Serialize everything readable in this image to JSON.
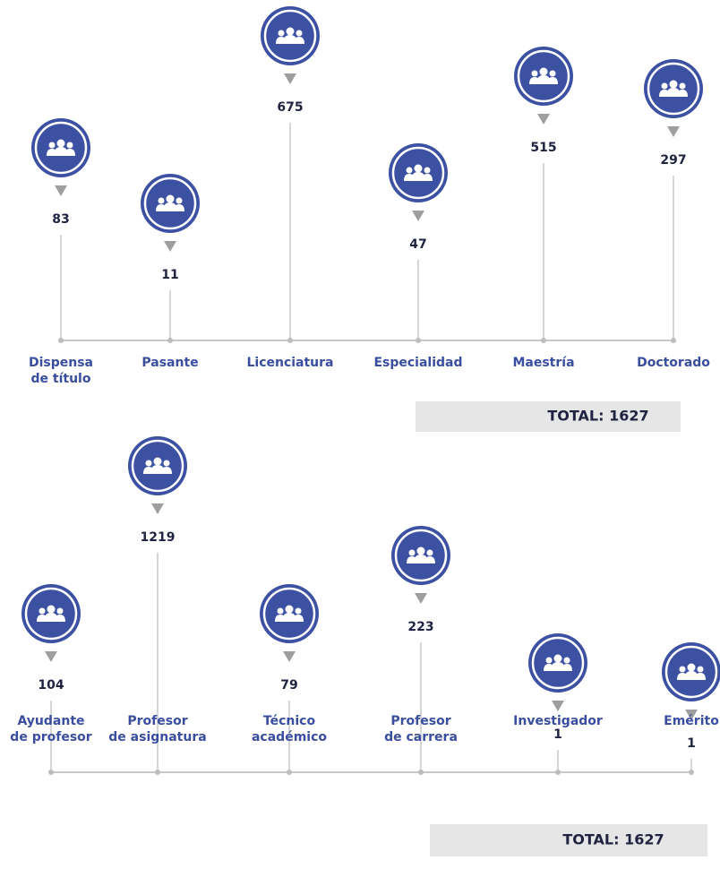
{
  "panels": [
    {
      "items": [
        {
          "label": [
            "Dispensa",
            "de título"
          ],
          "value": "83"
        },
        {
          "label": [
            "Pasante"
          ],
          "value": "11"
        },
        {
          "label": [
            "Licenciatura"
          ],
          "value": "675"
        },
        {
          "label": [
            "Especialidad"
          ],
          "value": "47"
        },
        {
          "label": [
            "Maestría"
          ],
          "value": "515"
        },
        {
          "label": [
            "Doctorado"
          ],
          "value": "297"
        }
      ],
      "total": "TOTAL: 1627"
    },
    {
      "items": [
        {
          "label": [
            "Ayudante",
            "de profesor"
          ],
          "value": "104"
        },
        {
          "label": [
            "Profesor",
            "de asignatura"
          ],
          "value": "1219"
        },
        {
          "label": [
            "Técnico",
            "académico"
          ],
          "value": "79"
        },
        {
          "label": [
            "Profesor",
            "de carrera"
          ],
          "value": "223"
        },
        {
          "label": [
            "Investigador"
          ],
          "value": "1"
        },
        {
          "label": [
            "Emérito"
          ],
          "value": "1"
        }
      ],
      "total": "TOTAL: 1627"
    }
  ]
}
